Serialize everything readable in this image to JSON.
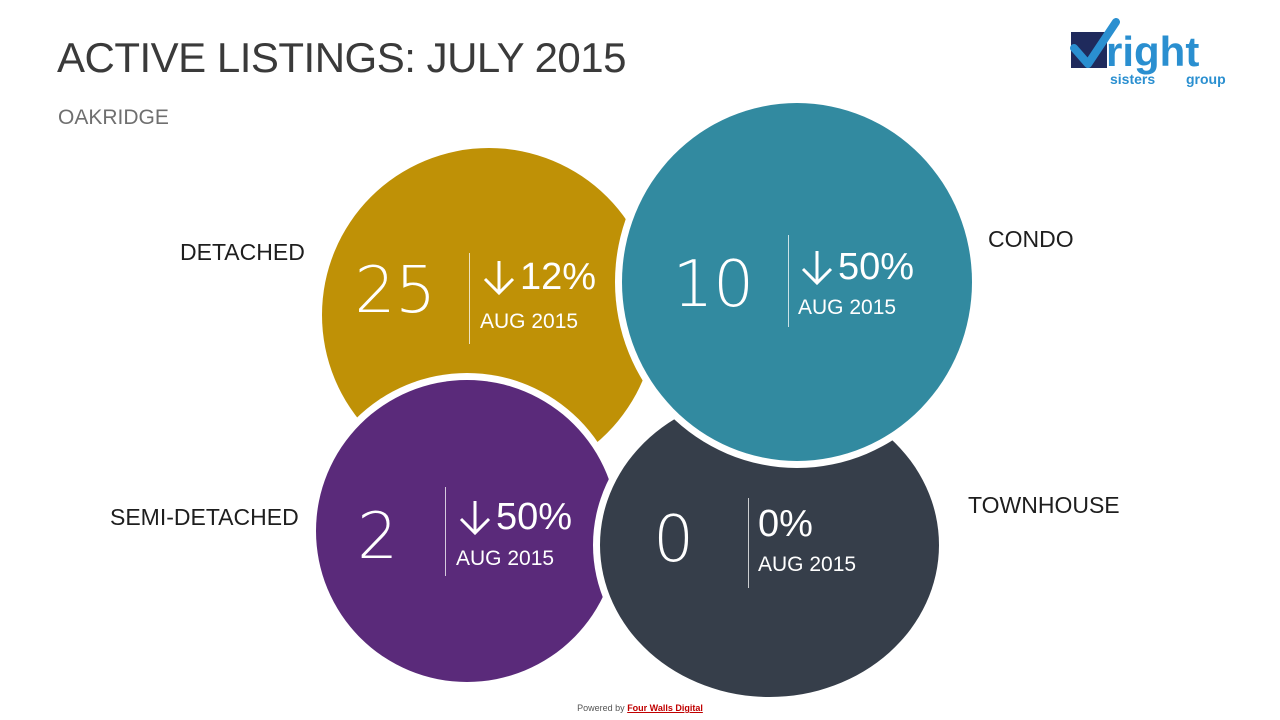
{
  "header": {
    "title": "ACTIVE LISTINGS: JULY 2015",
    "subtitle": "OAKRIDGE"
  },
  "logo": {
    "word": "right",
    "line2a": "sisters",
    "line2b": "group",
    "colors": {
      "navy": "#1f2a5c",
      "blue": "#2a8fd0"
    }
  },
  "categories": {
    "detached": {
      "label": "DETACHED",
      "count": "25",
      "change": "12%",
      "direction": "down",
      "period": "AUG 2015",
      "color": "#bf9106"
    },
    "condo": {
      "label": "CONDO",
      "count": "10",
      "change": "50%",
      "direction": "down",
      "period": "AUG 2015",
      "color": "#328aa0"
    },
    "semi": {
      "label": "SEMI-DETACHED",
      "count": "2",
      "change": "50%",
      "direction": "down",
      "period": "AUG 2015",
      "color": "#5a2a7a"
    },
    "townhouse": {
      "label": "TOWNHOUSE",
      "count": "0",
      "change": "0%",
      "direction": "none",
      "period": "AUG 2015",
      "color": "#363e4a"
    }
  },
  "footer": {
    "prefix": "Powered by",
    "brand": "Four Walls Digital"
  }
}
